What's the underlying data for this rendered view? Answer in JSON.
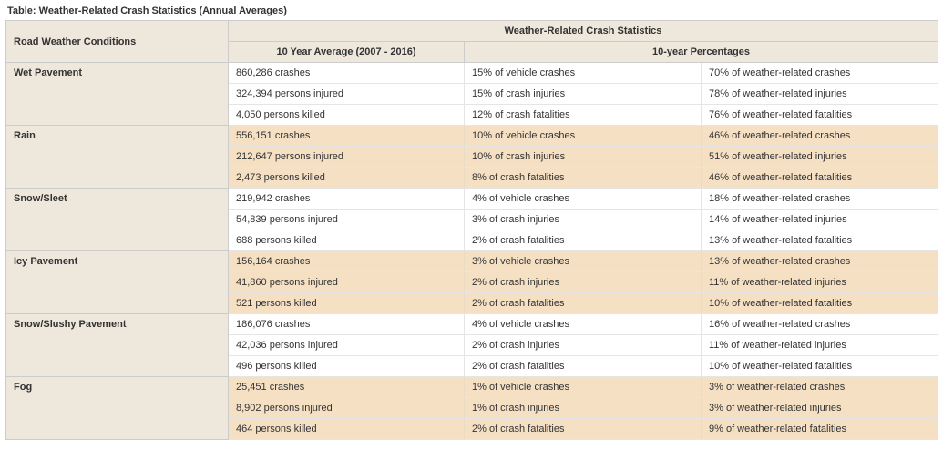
{
  "title": "Table: Weather-Related Crash Statistics (Annual Averages)",
  "columns": {
    "condition_header": "Road Weather Conditions",
    "super_header": "Weather-Related Crash Statistics",
    "avg_header": "10 Year Average (2007 - 2016)",
    "pct_header": "10-year Percentages"
  },
  "groups": [
    {
      "condition": "Wet Pavement",
      "band": "white",
      "rows": [
        {
          "avg": "860,286 crashes",
          "pct1": "15% of vehicle crashes",
          "pct2": "70% of weather-related crashes"
        },
        {
          "avg": "324,394 persons injured",
          "pct1": "15% of crash injuries",
          "pct2": "78% of weather-related injuries"
        },
        {
          "avg": "4,050 persons killed",
          "pct1": "12% of crash fatalities",
          "pct2": "76% of weather-related fatalities"
        }
      ]
    },
    {
      "condition": "Rain",
      "band": "tint",
      "rows": [
        {
          "avg": "556,151 crashes",
          "pct1": "10% of vehicle crashes",
          "pct2": "46% of weather-related crashes"
        },
        {
          "avg": "212,647 persons injured",
          "pct1": "10% of crash injuries",
          "pct2": "51% of weather-related injuries"
        },
        {
          "avg": "2,473 persons killed",
          "pct1": "8% of crash fatalities",
          "pct2": "46% of weather-related fatalities"
        }
      ]
    },
    {
      "condition": "Snow/Sleet",
      "band": "white",
      "rows": [
        {
          "avg": "219,942 crashes",
          "pct1": "4% of vehicle crashes",
          "pct2": "18% of weather-related crashes"
        },
        {
          "avg": "54,839 persons injured",
          "pct1": "3% of crash injuries",
          "pct2": "14% of weather-related injuries"
        },
        {
          "avg": "688 persons killed",
          "pct1": "2% of crash fatalities",
          "pct2": "13% of weather-related fatalities"
        }
      ]
    },
    {
      "condition": "Icy Pavement",
      "band": "tint",
      "rows": [
        {
          "avg": "156,164 crashes",
          "pct1": "3% of vehicle crashes",
          "pct2": "13% of weather-related crashes"
        },
        {
          "avg": "41,860 persons injured",
          "pct1": "2% of crash injuries",
          "pct2": "11% of weather-related injuries"
        },
        {
          "avg": "521 persons killed",
          "pct1": "2% of crash fatalities",
          "pct2": "10% of weather-related fatalities"
        }
      ]
    },
    {
      "condition": "Snow/Slushy Pavement",
      "band": "white",
      "rows": [
        {
          "avg": "186,076 crashes",
          "pct1": "4% of vehicle crashes",
          "pct2": "16% of weather-related crashes"
        },
        {
          "avg": "42,036 persons injured",
          "pct1": "2% of crash injuries",
          "pct2": "11% of weather-related injuries"
        },
        {
          "avg": "496 persons killed",
          "pct1": "2% of crash fatalities",
          "pct2": "10% of weather-related fatalities"
        }
      ]
    },
    {
      "condition": "Fog",
      "band": "tint",
      "rows": [
        {
          "avg": "25,451 crashes",
          "pct1": "1% of vehicle crashes",
          "pct2": "3% of weather-related crashes"
        },
        {
          "avg": "8,902 persons injured",
          "pct1": "1% of crash injuries",
          "pct2": "3% of weather-related injuries"
        },
        {
          "avg": "464 persons killed",
          "pct1": "2% of crash fatalities",
          "pct2": "9% of weather-related fatalities"
        }
      ]
    }
  ]
}
